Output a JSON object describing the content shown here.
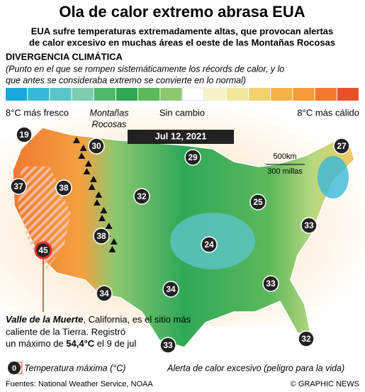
{
  "header": {
    "title": "Ola de calor extremo abrasa EUA",
    "subtitle_lines": [
      "EUA sufre temperaturas extremadamente altas, que provocan alertas",
      "de calor excesivo en muchas áreas el oeste de las Montañas Rocosas"
    ]
  },
  "legend": {
    "heading": "DIVERGENCIA CLIMÁTICA",
    "note_lines": [
      "(Punto en el que se rompen sistemáticamente los récords de calor,  y lo",
      "que antes se consideraba extremo se convierte en lo normal)"
    ],
    "colors": [
      "#1aa6d8",
      "#38b8d8",
      "#5cc4c8",
      "#7dccb0",
      "#4fb86a",
      "#33a852",
      "#5cb85a",
      "#8cc870",
      "#ffffff",
      "#f5f2c8",
      "#f3e69a",
      "#f5d070",
      "#f5b24a",
      "#f39a3a",
      "#ef7a30",
      "#e8502a"
    ],
    "labels": [
      "8°C más fresco",
      "Sin cambio",
      "8°C más cálido"
    ]
  },
  "map": {
    "mountains_lines": [
      "Montañas",
      "Rocosas"
    ],
    "date": "Jul 12, 2021",
    "scale": [
      "500km",
      "300 millas"
    ],
    "temperatures": [
      "19",
      "30",
      "29",
      "27",
      "37",
      "38",
      "32",
      "25",
      "38",
      "24",
      "33",
      "45",
      "34",
      "34",
      "33",
      "33",
      "32"
    ]
  },
  "callout": {
    "place": "Valle de la Muerte",
    "text_lines": [
      ", California, es el sitio más",
      "caliente de la Tierra. Registró",
      "un máximo de "
    ],
    "value": "54,4°C",
    "tail": " el 9 de jul"
  },
  "key": {
    "example": "0",
    "temperature": "Temperatura máxima (°C)",
    "alert": "Alerta de calor excesivo (peligro para la vida)"
  },
  "footer": {
    "sources": "Fuentes: National Weather Service, NOAA",
    "credit": "© GRAPHIC NEWS"
  }
}
